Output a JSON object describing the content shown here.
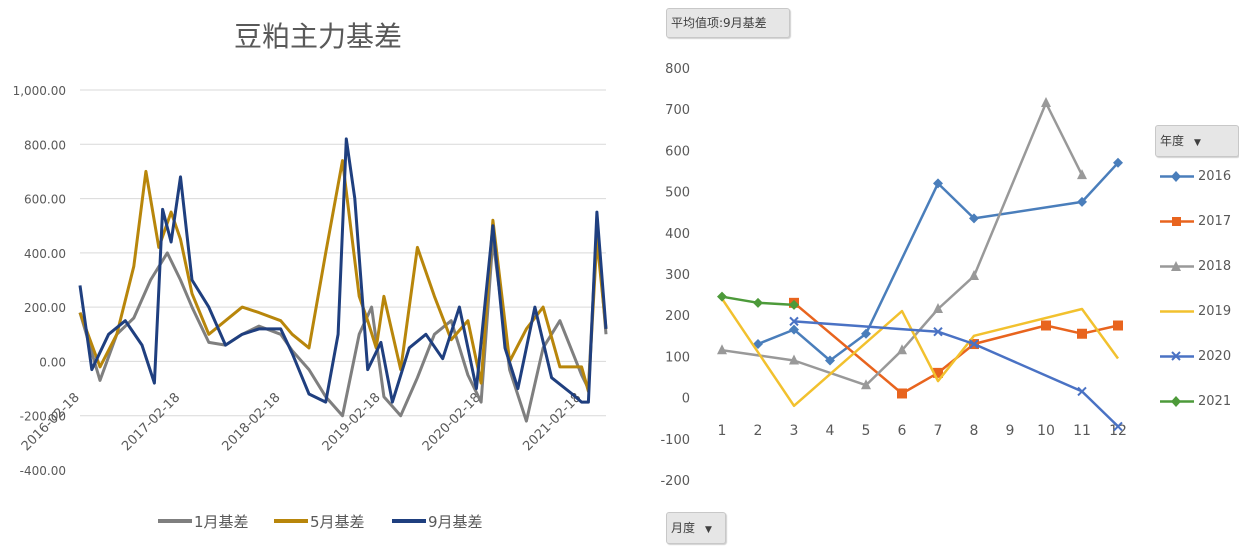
{
  "colors": {
    "jan_basis": "#7f7f7f",
    "may_basis": "#b8860b",
    "sep_basis": "#1f3f7f",
    "y2016": "#4a7ebb",
    "y2017": "#e8641e",
    "y2018": "#999999",
    "y2019": "#f2c12e",
    "y2020": "#4a72c4",
    "y2021": "#4d9a3a",
    "grid": "#d9d9d9"
  },
  "chart_data": [
    {
      "type": "line",
      "title": "豆粕主力基差",
      "ylim": [
        -400,
        1000
      ],
      "y_ticks": [
        "1,000.00",
        "800.00",
        "600.00",
        "400.00",
        "200.00",
        "0.00",
        "-200.00",
        "-400.00"
      ],
      "x_tick_labels": [
        "2016-02-18",
        "2017-02-18",
        "2018-02-18",
        "2019-02-18",
        "2020-02-18",
        "2021-02-18"
      ],
      "x_range": [
        "2016-02-18",
        "2021-05-18"
      ],
      "grid": "horizontal",
      "legend_position": "bottom",
      "series": [
        {
          "name": "1月基差",
          "color_key": "jan_basis",
          "x": [
            "2016-02-18",
            "2016-05-01",
            "2016-07-01",
            "2016-09-01",
            "2016-11-01",
            "2017-01-01",
            "2017-02-18",
            "2017-04-01",
            "2017-06-01",
            "2017-08-01",
            "2017-10-01",
            "2017-12-01",
            "2018-02-18",
            "2018-04-01",
            "2018-06-01",
            "2018-08-01",
            "2018-10-01",
            "2018-12-01",
            "2019-01-15",
            "2019-03-01",
            "2019-05-01",
            "2019-07-01",
            "2019-09-01",
            "2019-11-01",
            "2020-01-01",
            "2020-02-18",
            "2020-04-01",
            "2020-06-01",
            "2020-08-01",
            "2020-10-01",
            "2020-12-01",
            "2021-02-18",
            "2021-03-15",
            "2021-04-15",
            "2021-05-18"
          ],
          "values": [
            180,
            -70,
            100,
            160,
            300,
            400,
            300,
            200,
            70,
            60,
            100,
            130,
            100,
            40,
            -30,
            -130,
            -200,
            100,
            200,
            -130,
            -200,
            -60,
            100,
            150,
            -50,
            -150,
            450,
            -30,
            -220,
            50,
            150,
            -50,
            -100,
            500,
            100
          ]
        },
        {
          "name": "5月基差",
          "color_key": "may_basis",
          "x": [
            "2016-02-18",
            "2016-05-01",
            "2016-07-01",
            "2016-09-01",
            "2016-10-15",
            "2016-12-01",
            "2017-01-15",
            "2017-02-18",
            "2017-04-01",
            "2017-06-01",
            "2017-08-01",
            "2017-10-01",
            "2017-12-01",
            "2018-02-18",
            "2018-04-01",
            "2018-06-01",
            "2018-08-01",
            "2018-10-01",
            "2018-12-01",
            "2019-01-01",
            "2019-02-01",
            "2019-03-01",
            "2019-05-01",
            "2019-07-01",
            "2019-09-01",
            "2019-11-01",
            "2020-01-01",
            "2020-02-18",
            "2020-04-01",
            "2020-06-01",
            "2020-08-01",
            "2020-10-01",
            "2020-12-01",
            "2021-02-18",
            "2021-03-15",
            "2021-04-15",
            "2021-05-18"
          ],
          "values": [
            180,
            -20,
            100,
            350,
            700,
            420,
            550,
            450,
            250,
            100,
            150,
            200,
            180,
            150,
            100,
            50,
            400,
            740,
            240,
            150,
            50,
            240,
            -30,
            420,
            240,
            80,
            150,
            -80,
            520,
            0,
            120,
            200,
            -20,
            -20,
            -110,
            450,
            120
          ]
        },
        {
          "name": "9月基差",
          "color_key": "sep_basis",
          "x": [
            "2016-02-18",
            "2016-04-01",
            "2016-06-01",
            "2016-08-01",
            "2016-10-01",
            "2016-11-15",
            "2016-12-15",
            "2017-01-15",
            "2017-02-18",
            "2017-04-01",
            "2017-06-01",
            "2017-08-01",
            "2017-10-01",
            "2017-12-01",
            "2018-02-18",
            "2018-04-01",
            "2018-06-01",
            "2018-08-01",
            "2018-09-15",
            "2018-10-15",
            "2018-11-15",
            "2019-01-01",
            "2019-02-18",
            "2019-04-01",
            "2019-06-01",
            "2019-08-01",
            "2019-10-01",
            "2019-12-01",
            "2020-02-01",
            "2020-04-01",
            "2020-05-15",
            "2020-07-01",
            "2020-09-01",
            "2020-11-01",
            "2021-01-15",
            "2021-02-18",
            "2021-03-15",
            "2021-04-15",
            "2021-05-18"
          ],
          "values": [
            280,
            -30,
            100,
            150,
            60,
            -80,
            560,
            440,
            680,
            300,
            200,
            60,
            100,
            120,
            120,
            30,
            -120,
            -150,
            100,
            820,
            600,
            -30,
            70,
            -150,
            50,
            100,
            10,
            200,
            -100,
            500,
            50,
            -100,
            200,
            -60,
            -120,
            -150,
            -150,
            550,
            120
          ]
        }
      ]
    },
    {
      "type": "line",
      "field_label": "平均值项:9月基差",
      "ylim": [
        -200,
        800
      ],
      "y_ticks": [
        800,
        700,
        600,
        500,
        400,
        300,
        200,
        100,
        0,
        -100,
        -200
      ],
      "categories": [
        "1",
        "2",
        "3",
        "4",
        "5",
        "6",
        "7",
        "8",
        "9",
        "10",
        "11",
        "12"
      ],
      "grid": "none",
      "legend_position": "right",
      "legend_title": "年度",
      "x_filter_label": "月度",
      "series": [
        {
          "name": "2016",
          "color_key": "y2016",
          "marker": "diamond",
          "x": [
            2,
            3,
            4,
            5,
            7,
            8,
            11,
            12
          ],
          "values": [
            130,
            165,
            90,
            155,
            520,
            435,
            475,
            570
          ]
        },
        {
          "name": "2017",
          "color_key": "y2017",
          "marker": "square",
          "x": [
            3,
            6,
            7,
            8,
            10,
            11,
            12
          ],
          "values": [
            230,
            10,
            60,
            130,
            175,
            155,
            175
          ]
        },
        {
          "name": "2018",
          "color_key": "y2018",
          "marker": "triangle",
          "x": [
            1,
            3,
            5,
            6,
            7,
            8,
            10,
            11
          ],
          "values": [
            115,
            90,
            30,
            115,
            215,
            295,
            715,
            540
          ]
        },
        {
          "name": "2019",
          "color_key": "y2019",
          "marker": "none",
          "x": [
            1,
            3,
            6,
            7,
            8,
            11,
            12
          ],
          "values": [
            240,
            -20,
            210,
            40,
            150,
            215,
            95
          ]
        },
        {
          "name": "2020",
          "color_key": "y2020",
          "marker": "x",
          "x": [
            3,
            7,
            8,
            11,
            12
          ],
          "values": [
            185,
            160,
            130,
            15,
            -70
          ]
        },
        {
          "name": "2021",
          "color_key": "y2021",
          "marker": "diamond",
          "x": [
            1,
            2,
            3
          ],
          "values": [
            245,
            230,
            225
          ]
        }
      ]
    }
  ]
}
